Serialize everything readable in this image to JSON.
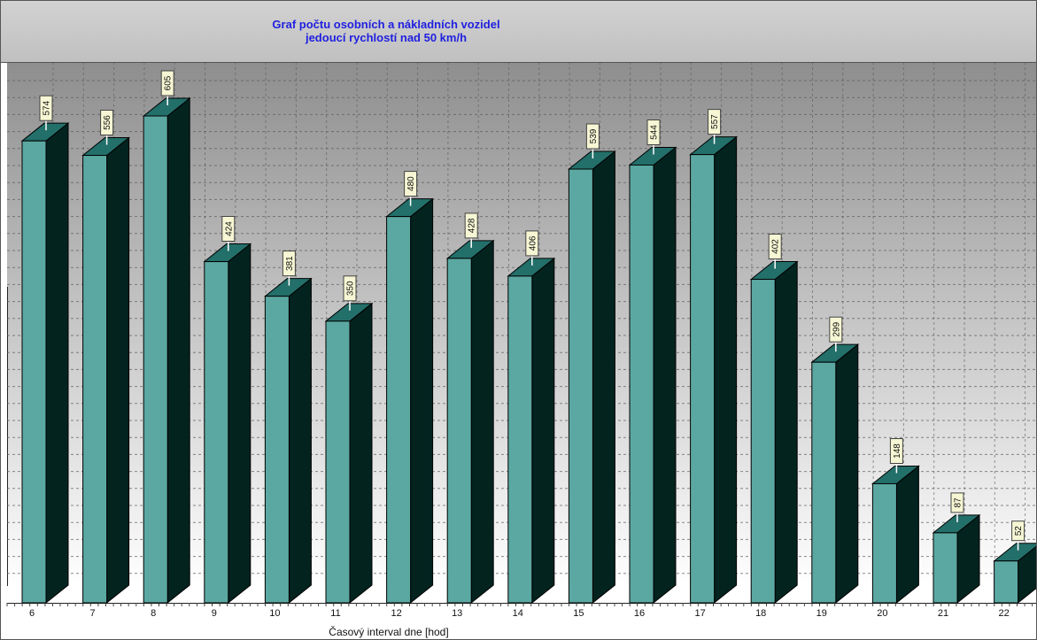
{
  "chart_data": {
    "type": "bar",
    "title": "Graf počtu osobních a nákladních vozidel",
    "subtitle": "jedoucí rychlostí nad 50 km/h",
    "xlabel": "Časový interval dne [hod]",
    "ylabel": "",
    "categories": [
      "6",
      "7",
      "8",
      "9",
      "10",
      "11",
      "12",
      "13",
      "14",
      "15",
      "16",
      "17",
      "18",
      "19",
      "20",
      "21",
      "22"
    ],
    "values": [
      574,
      556,
      605,
      424,
      381,
      350,
      480,
      428,
      406,
      539,
      544,
      557,
      402,
      299,
      148,
      87,
      52
    ],
    "data_labels": [
      "574",
      "556",
      "605",
      "424",
      "381",
      "350",
      "480",
      "428",
      "406",
      "539",
      "544",
      "557",
      "402",
      "299",
      "148",
      "87",
      "52"
    ],
    "grid": true,
    "legend": "none",
    "style": "3d",
    "colors": {
      "bar_front": "#5ba8a2",
      "bar_side": "#03231f",
      "bar_top": "#236f6a",
      "title": "#1f1fe0",
      "background_top": "#8e8e8e",
      "background_bottom": "#ffffff"
    }
  }
}
